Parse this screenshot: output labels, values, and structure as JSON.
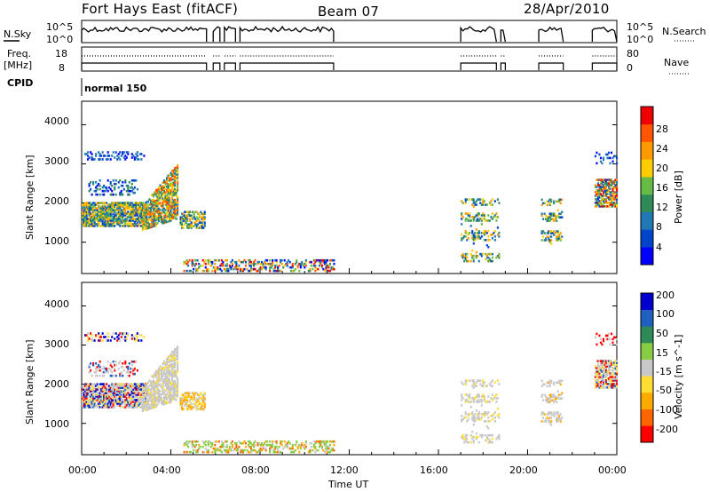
{
  "header": {
    "station": "Fort Hays East (fitACF)",
    "beam": "Beam 07",
    "date": "28/Apr/2010"
  },
  "left_labels": {
    "nsky": "N.Sky",
    "nsky_ticks": [
      "10^5",
      "10^0"
    ],
    "freq_line1": "Freq.",
    "freq_line2": "[MHz]",
    "freq_ticks": [
      "18",
      "8"
    ],
    "cpid": "CPID",
    "cpid_value": "normal 150"
  },
  "right_labels": {
    "nsearch": "N.Search",
    "nsearch_ticks": [
      "10^5",
      "10^0"
    ],
    "nave": "Nave",
    "nave_ticks": [
      "80",
      "0"
    ]
  },
  "colors": {
    "power_scale": [
      "#0000ff",
      "#0044cc",
      "#1f77b4",
      "#2e8b57",
      "#66bb44",
      "#ffcc00",
      "#ff9900",
      "#ff5500",
      "#ee0000"
    ],
    "velocity_scale": [
      "#ff0000",
      "#ff6600",
      "#ffaa00",
      "#ffdd33",
      "#c8c8c8",
      "#88cc44",
      "#2e8b57",
      "#1f5fbf",
      "#0000cc"
    ]
  },
  "chart_data": [
    {
      "type": "heatmap",
      "ylabel": "Slant Range [km]",
      "yticks": [
        "1000",
        "2000",
        "3000",
        "4000"
      ],
      "ylim": [
        200,
        4600
      ],
      "colorbar_label": "Power [dB]",
      "colorbar_ticks": [
        "4",
        "8",
        "12",
        "16",
        "20",
        "24",
        "28"
      ],
      "clim": [
        0,
        32
      ]
    },
    {
      "type": "heatmap",
      "ylabel": "Slant Range [km]",
      "yticks": [
        "1000",
        "2000",
        "3000",
        "4000"
      ],
      "ylim": [
        200,
        4600
      ],
      "colorbar_label": "Velocity [m s^-1]",
      "colorbar_ticks": [
        "-200",
        "-100",
        "-50",
        "-15",
        "15",
        "50",
        "100",
        "200"
      ],
      "xlabel": "Time UT",
      "xticks": [
        "00:00",
        "04:00",
        "08:00",
        "12:00",
        "16:00",
        "20:00",
        "00:00"
      ],
      "xlim": [
        0,
        24
      ]
    }
  ]
}
